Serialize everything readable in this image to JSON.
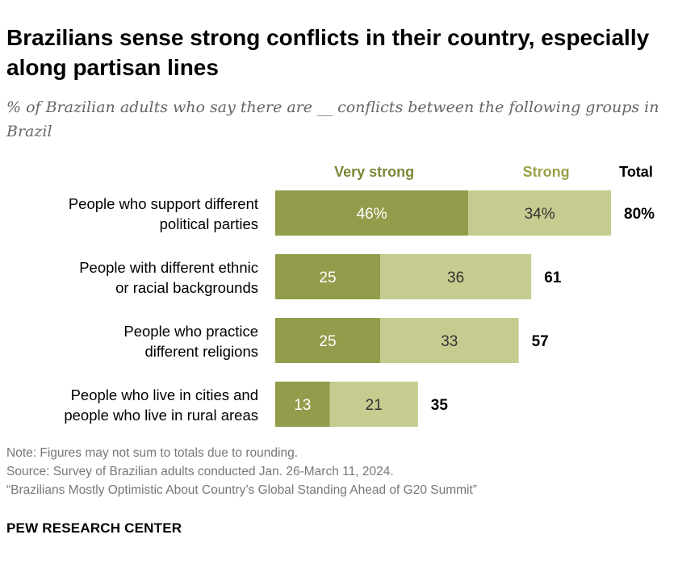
{
  "title": "Brazilians sense strong conflicts in their country, especially along partisan lines",
  "subtitle": "% of Brazilian adults who say there are __ conflicts between the following groups in Brazil",
  "colors": {
    "very_strong": "#939c4a",
    "strong": "#c6cb8f",
    "very_strong_text": "#7d8636",
    "strong_text": "#9aa247"
  },
  "chart_data": {
    "type": "bar",
    "stacked": true,
    "orientation": "horizontal",
    "categories": [
      [
        "People who support different",
        "political parties"
      ],
      [
        "People with different ethnic",
        "or racial backgrounds"
      ],
      [
        "People who practice",
        "different religions"
      ],
      [
        "People who live in cities and",
        "people who live in rural areas"
      ]
    ],
    "series": [
      {
        "name": "Very strong",
        "values": [
          46,
          25,
          25,
          13
        ],
        "labels": [
          "46%",
          "25",
          "25",
          "13"
        ]
      },
      {
        "name": "Strong",
        "values": [
          34,
          36,
          33,
          21
        ],
        "labels": [
          "34%",
          "36",
          "33",
          "21"
        ]
      }
    ],
    "totals_header": "Total",
    "totals": [
      "80%",
      "61",
      "57",
      "35"
    ],
    "xlim": [
      0,
      80
    ]
  },
  "notes": [
    "Note: Figures may not sum to totals due to rounding.",
    "Source: Survey of Brazilian adults conducted Jan. 26-March 11, 2024.",
    "“Brazilians Mostly Optimistic About Country’s Global Standing Ahead of G20 Summit”"
  ],
  "brand": "PEW RESEARCH CENTER"
}
